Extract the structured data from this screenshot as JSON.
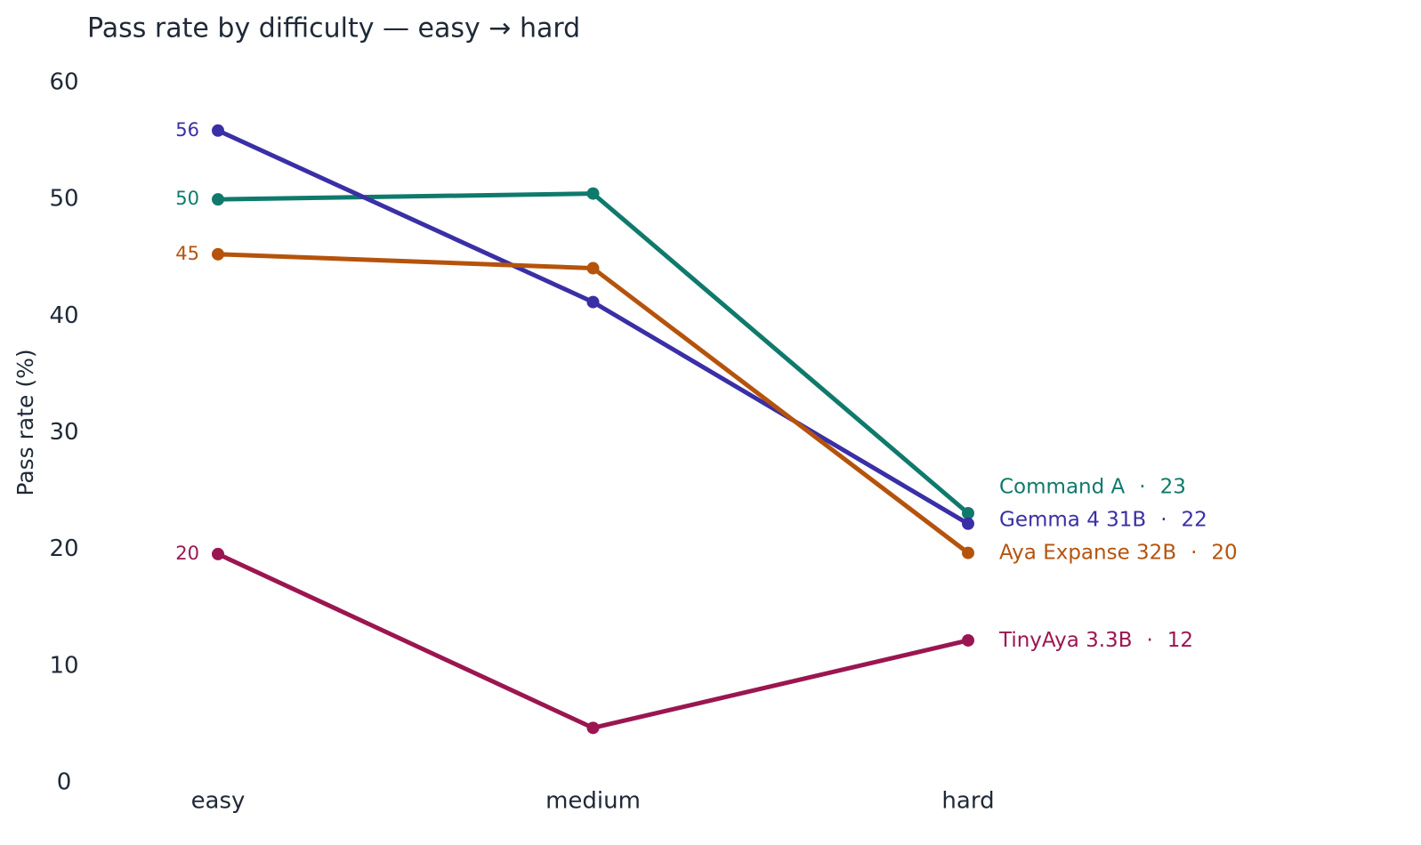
{
  "chart_data": {
    "type": "line",
    "title": "Pass rate by difficulty — easy → hard",
    "y_label": "Pass rate (%)",
    "categories": [
      "easy",
      "medium",
      "hard"
    ],
    "label_separator": "·",
    "series": [
      {
        "name": "Command A",
        "color": "#0f7a6c",
        "values": [
          50,
          50.5,
          23.1
        ],
        "value_labels": [
          "50",
          null,
          "23"
        ]
      },
      {
        "name": "Gemma 4 31B",
        "color": "#3a2fa6",
        "values": [
          55.9,
          41.2,
          22.2
        ],
        "value_labels": [
          "56",
          null,
          "22"
        ]
      },
      {
        "name": "Aya Expanse 32B",
        "color": "#b5530c",
        "values": [
          45.3,
          44.1,
          19.7
        ],
        "value_labels": [
          "45",
          null,
          "20"
        ]
      },
      {
        "name": "TinyAya 3.3B",
        "color": "#9b1650",
        "values": [
          19.6,
          4.7,
          12.2
        ],
        "value_labels": [
          "20",
          null,
          "12"
        ]
      }
    ],
    "ylim": [
      0,
      60
    ],
    "yticks": [
      0,
      10,
      20,
      30,
      40,
      50,
      60
    ],
    "grid": false
  }
}
